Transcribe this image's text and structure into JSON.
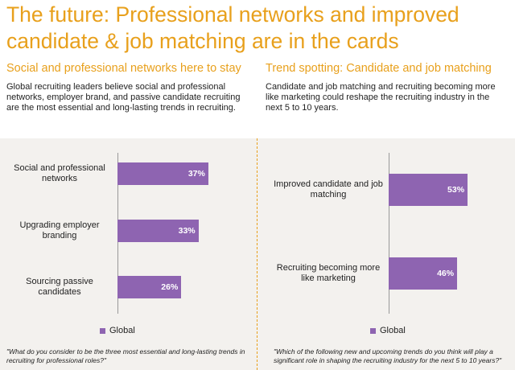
{
  "title_line1": "The future: Professional networks and improved",
  "title_line2": "candidate & job matching are in the cards",
  "left": {
    "subtitle": "Social and professional networks here to stay",
    "description": "Global recruiting leaders believe social and professional networks, employer brand, and passive candidate recruiting are the most essential and long-lasting trends in recruiting.",
    "legend": "Global",
    "footnote": "\"What do you consider to be the three most essential and long-lasting trends in recruiting for professional roles?\""
  },
  "right": {
    "subtitle": "Trend spotting: Candidate and job matching",
    "description": "Candidate and job matching and recruiting becoming more like marketing could reshape the recruiting industry in the next 5 to 10 years.",
    "legend": "Global",
    "footnote": "\"Which of the following new and upcoming trends do you think will play a significant role in shaping the recruiting industry for the next 5 to 10 years?\""
  },
  "colors": {
    "accent": "#e8a01c",
    "bar": "#8e64b1",
    "band": "#f3f1ee"
  },
  "chart_data": [
    {
      "type": "bar",
      "orientation": "horizontal",
      "categories": [
        "Social and professional networks",
        "Upgrading employer branding",
        "Sourcing passive candidates"
      ],
      "series": [
        {
          "name": "Global",
          "values": [
            37,
            33,
            26
          ]
        }
      ],
      "value_labels": [
        "37%",
        "33%",
        "26%"
      ],
      "legend_position": "bottom-left",
      "grid": false
    },
    {
      "type": "bar",
      "orientation": "horizontal",
      "categories": [
        "Improved candidate and job matching",
        "Recruiting becoming more like marketing"
      ],
      "series": [
        {
          "name": "Global",
          "values": [
            53,
            46
          ]
        }
      ],
      "value_labels": [
        "53%",
        "46%"
      ],
      "legend_position": "bottom-left",
      "grid": false
    }
  ]
}
